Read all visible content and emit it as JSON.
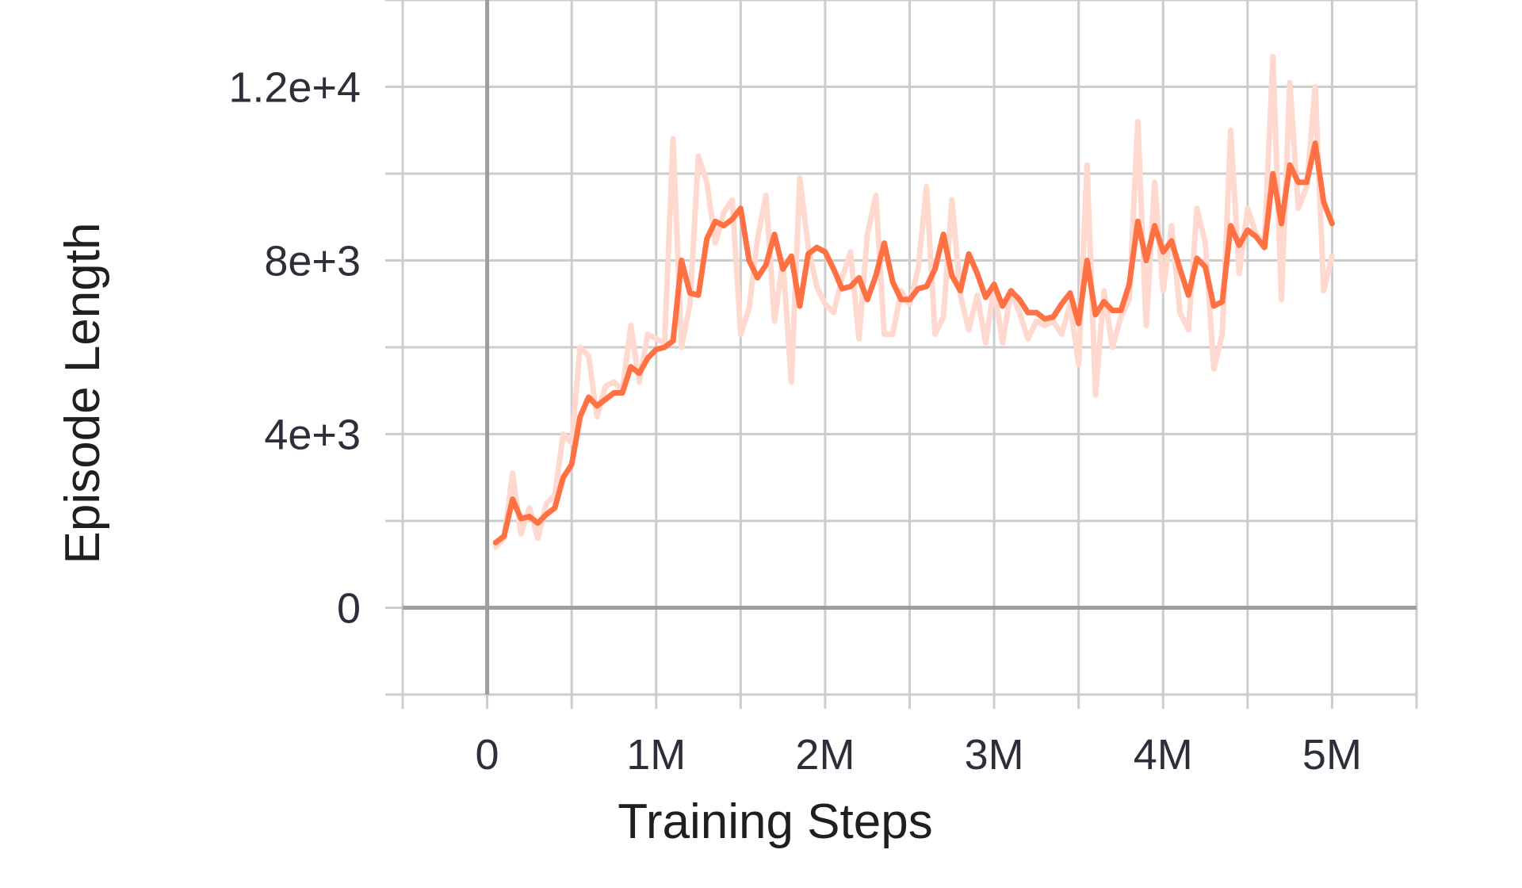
{
  "chart_data": {
    "type": "line",
    "title": "",
    "xlabel": "Training Steps",
    "ylabel": "Episode Length",
    "xlim": [
      -500000,
      5500000
    ],
    "ylim": [
      -2000,
      14000
    ],
    "x_ticks": [
      0,
      1000000,
      2000000,
      3000000,
      4000000,
      5000000
    ],
    "x_tick_labels": [
      "0",
      "1M",
      "2M",
      "3M",
      "4M",
      "5M"
    ],
    "y_ticks": [
      0,
      4000,
      8000,
      12000
    ],
    "y_tick_labels": [
      "0",
      "4e+3",
      "8e+3",
      "1.2e+4"
    ],
    "x_minor_gridlines": [
      -500000,
      500000,
      1500000,
      2500000,
      3500000,
      4500000,
      5500000
    ],
    "y_minor_gridlines": [
      -2000,
      2000,
      6000,
      10000,
      14000
    ],
    "grid": true,
    "colors": {
      "smoothed": "#ff7043",
      "raw": "#ffd9cf",
      "zero_axis": "#9e9e9e",
      "grid": "#cccccc"
    },
    "series": [
      {
        "role": "raw",
        "x": [
          50000,
          100000,
          150000,
          200000,
          250000,
          300000,
          350000,
          400000,
          450000,
          500000,
          550000,
          600000,
          650000,
          700000,
          750000,
          800000,
          850000,
          900000,
          950000,
          1000000,
          1050000,
          1100000,
          1150000,
          1200000,
          1250000,
          1300000,
          1350000,
          1400000,
          1450000,
          1500000,
          1550000,
          1600000,
          1650000,
          1700000,
          1750000,
          1800000,
          1850000,
          1900000,
          1950000,
          2000000,
          2050000,
          2100000,
          2150000,
          2200000,
          2250000,
          2300000,
          2350000,
          2400000,
          2450000,
          2500000,
          2550000,
          2600000,
          2650000,
          2700000,
          2750000,
          2800000,
          2850000,
          2900000,
          2950000,
          3000000,
          3050000,
          3100000,
          3150000,
          3200000,
          3250000,
          3300000,
          3350000,
          3400000,
          3450000,
          3500000,
          3550000,
          3600000,
          3650000,
          3700000,
          3750000,
          3800000,
          3850000,
          3900000,
          3950000,
          4000000,
          4050000,
          4100000,
          4150000,
          4200000,
          4250000,
          4300000,
          4350000,
          4400000,
          4450000,
          4500000,
          4550000,
          4600000,
          4650000,
          4700000,
          4750000,
          4800000,
          4850000,
          4900000,
          4950000,
          5000000
        ],
        "y": [
          1400,
          1600,
          3100,
          1700,
          2300,
          1600,
          2400,
          2600,
          4000,
          3800,
          6000,
          5800,
          4400,
          5100,
          5200,
          5000,
          6500,
          5200,
          6300,
          6200,
          6100,
          10800,
          6000,
          7000,
          10400,
          9800,
          8400,
          9100,
          9400,
          6300,
          6900,
          8500,
          9500,
          6600,
          8000,
          5200,
          9900,
          8300,
          7400,
          7000,
          6800,
          7600,
          8200,
          6200,
          8600,
          9500,
          6300,
          6300,
          7300,
          7000,
          7800,
          9700,
          6300,
          6700,
          9400,
          7200,
          6400,
          7200,
          6100,
          7400,
          6100,
          7300,
          6800,
          6200,
          6600,
          6500,
          6600,
          6300,
          7000,
          5600,
          10200,
          4900,
          7300,
          6000,
          6700,
          7100,
          11200,
          6500,
          9800,
          7300,
          8800,
          6800,
          6400,
          9200,
          8400,
          5500,
          6300,
          11000,
          7700,
          9200,
          8600,
          8400,
          12700,
          7100,
          12100,
          9200,
          9700,
          12000,
          7300,
          8100
        ]
      },
      {
        "role": "smoothed",
        "x": [
          50000,
          100000,
          150000,
          200000,
          250000,
          300000,
          350000,
          400000,
          450000,
          500000,
          550000,
          600000,
          650000,
          700000,
          750000,
          800000,
          850000,
          900000,
          950000,
          1000000,
          1050000,
          1100000,
          1150000,
          1200000,
          1250000,
          1300000,
          1350000,
          1400000,
          1450000,
          1500000,
          1550000,
          1600000,
          1650000,
          1700000,
          1750000,
          1800000,
          1850000,
          1900000,
          1950000,
          2000000,
          2050000,
          2100000,
          2150000,
          2200000,
          2250000,
          2300000,
          2350000,
          2400000,
          2450000,
          2500000,
          2550000,
          2600000,
          2650000,
          2700000,
          2750000,
          2800000,
          2850000,
          2900000,
          2950000,
          3000000,
          3050000,
          3100000,
          3150000,
          3200000,
          3250000,
          3300000,
          3350000,
          3400000,
          3450000,
          3500000,
          3550000,
          3600000,
          3650000,
          3700000,
          3750000,
          3800000,
          3850000,
          3900000,
          3950000,
          4000000,
          4050000,
          4100000,
          4150000,
          4200000,
          4250000,
          4300000,
          4350000,
          4400000,
          4450000,
          4500000,
          4550000,
          4600000,
          4650000,
          4700000,
          4750000,
          4800000,
          4850000,
          4900000,
          4950000,
          5000000
        ],
        "y": [
          1500,
          1650,
          2500,
          2050,
          2100,
          1950,
          2150,
          2300,
          3000,
          3300,
          4400,
          4850,
          4650,
          4800,
          4950,
          4950,
          5550,
          5400,
          5750,
          5950,
          6000,
          6150,
          8000,
          7250,
          7200,
          8500,
          8900,
          8800,
          8950,
          9200,
          8000,
          7600,
          7900,
          8600,
          7800,
          8100,
          6950,
          8150,
          8300,
          8200,
          7800,
          7350,
          7400,
          7600,
          7100,
          7650,
          8400,
          7500,
          7100,
          7100,
          7350,
          7400,
          7800,
          8600,
          7650,
          7300,
          8150,
          7700,
          7150,
          7450,
          6950,
          7300,
          7100,
          6800,
          6800,
          6650,
          6700,
          7000,
          7250,
          6550,
          8000,
          6750,
          7050,
          6850,
          6850,
          7450,
          8900,
          8000,
          8800,
          8200,
          8450,
          7800,
          7200,
          8050,
          7850,
          6950,
          7050,
          8800,
          8350,
          8700,
          8550,
          8300,
          10000,
          8850,
          10200,
          9800,
          9800,
          10700,
          9350,
          8850
        ]
      }
    ]
  }
}
